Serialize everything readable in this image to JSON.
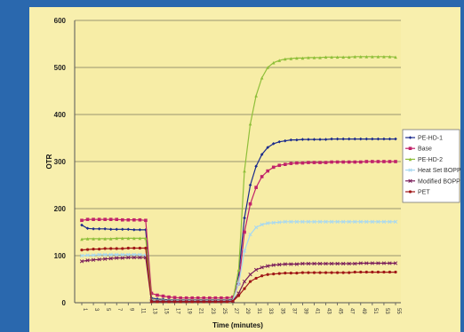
{
  "chart_data": {
    "type": "line",
    "title": "",
    "xlabel": "Time (minutes)",
    "ylabel": "OTR",
    "ylim": [
      0,
      600
    ],
    "yticks": [
      0,
      100,
      200,
      300,
      400,
      500,
      600
    ],
    "x_tick_labels": [
      "1",
      "3",
      "5",
      "7",
      "9",
      "11",
      "13",
      "15",
      "17",
      "19",
      "21",
      "23",
      "25",
      "27",
      "29",
      "31",
      "33",
      "35",
      "37",
      "39",
      "41",
      "43",
      "45",
      "47",
      "49",
      "51",
      "53",
      "55"
    ],
    "grid": "horizontal",
    "legend_position": "right",
    "series": [
      {
        "name": "PE-HD-1",
        "color": "#1a2a8c",
        "marker": "diamond",
        "values": [
          165,
          158,
          157,
          157,
          157,
          156,
          156,
          156,
          156,
          155,
          155,
          155,
          10,
          8,
          7,
          6,
          6,
          6,
          6,
          6,
          6,
          6,
          6,
          6,
          6,
          6,
          8,
          60,
          180,
          250,
          290,
          315,
          330,
          338,
          342,
          344,
          346,
          346,
          347,
          347,
          347,
          347,
          347,
          348,
          348,
          348,
          348,
          348,
          348,
          348,
          348,
          348,
          348,
          348,
          348
        ]
      },
      {
        "name": "Base",
        "color": "#c0226a",
        "marker": "square",
        "values": [
          175,
          177,
          177,
          177,
          177,
          177,
          177,
          176,
          176,
          176,
          176,
          175,
          20,
          16,
          14,
          12,
          11,
          10,
          10,
          10,
          10,
          10,
          10,
          10,
          10,
          10,
          12,
          40,
          150,
          210,
          245,
          268,
          280,
          288,
          292,
          294,
          296,
          297,
          297,
          298,
          298,
          298,
          298,
          299,
          299,
          299,
          299,
          299,
          299,
          300,
          300,
          300,
          300,
          300,
          300
        ]
      },
      {
        "name": "PE-HD-2",
        "color": "#8fbf3a",
        "marker": "triangle",
        "values": [
          135,
          136,
          136,
          136,
          136,
          136,
          137,
          137,
          137,
          137,
          137,
          137,
          6,
          5,
          5,
          5,
          5,
          5,
          5,
          5,
          5,
          5,
          5,
          5,
          5,
          5,
          6,
          70,
          280,
          380,
          440,
          478,
          500,
          510,
          515,
          518,
          519,
          520,
          520,
          521,
          521,
          521,
          522,
          522,
          522,
          522,
          522,
          523,
          523,
          523,
          523,
          523,
          523,
          523,
          522
        ]
      },
      {
        "name": "Heat Set BOPP",
        "color": "#a8d8f0",
        "marker": "x",
        "values": [
          100,
          101,
          101,
          102,
          102,
          102,
          102,
          102,
          102,
          102,
          102,
          101,
          4,
          4,
          4,
          4,
          4,
          4,
          4,
          4,
          4,
          4,
          4,
          4,
          4,
          4,
          5,
          40,
          110,
          145,
          160,
          166,
          169,
          170,
          171,
          172,
          172,
          172,
          172,
          172,
          172,
          172,
          172,
          172,
          172,
          172,
          172,
          172,
          172,
          172,
          172,
          172,
          172,
          172,
          172
        ]
      },
      {
        "name": "Modified BOPP",
        "color": "#7a1e5a",
        "marker": "star",
        "values": [
          88,
          90,
          91,
          92,
          93,
          94,
          95,
          95,
          96,
          96,
          96,
          96,
          3,
          3,
          3,
          3,
          3,
          3,
          3,
          3,
          3,
          3,
          3,
          3,
          3,
          3,
          4,
          20,
          45,
          60,
          70,
          75,
          78,
          80,
          81,
          82,
          82,
          82,
          83,
          83,
          83,
          83,
          83,
          83,
          83,
          83,
          83,
          83,
          84,
          84,
          84,
          84,
          84,
          84,
          84
        ]
      },
      {
        "name": "PET",
        "color": "#a01818",
        "marker": "circle",
        "values": [
          112,
          113,
          114,
          114,
          115,
          115,
          115,
          115,
          116,
          116,
          116,
          116,
          2,
          2,
          2,
          2,
          2,
          2,
          2,
          2,
          2,
          2,
          2,
          2,
          2,
          2,
          3,
          15,
          30,
          45,
          52,
          57,
          60,
          61,
          62,
          63,
          63,
          63,
          64,
          64,
          64,
          64,
          64,
          64,
          64,
          64,
          64,
          65,
          65,
          65,
          65,
          65,
          65,
          65,
          65
        ]
      }
    ]
  }
}
